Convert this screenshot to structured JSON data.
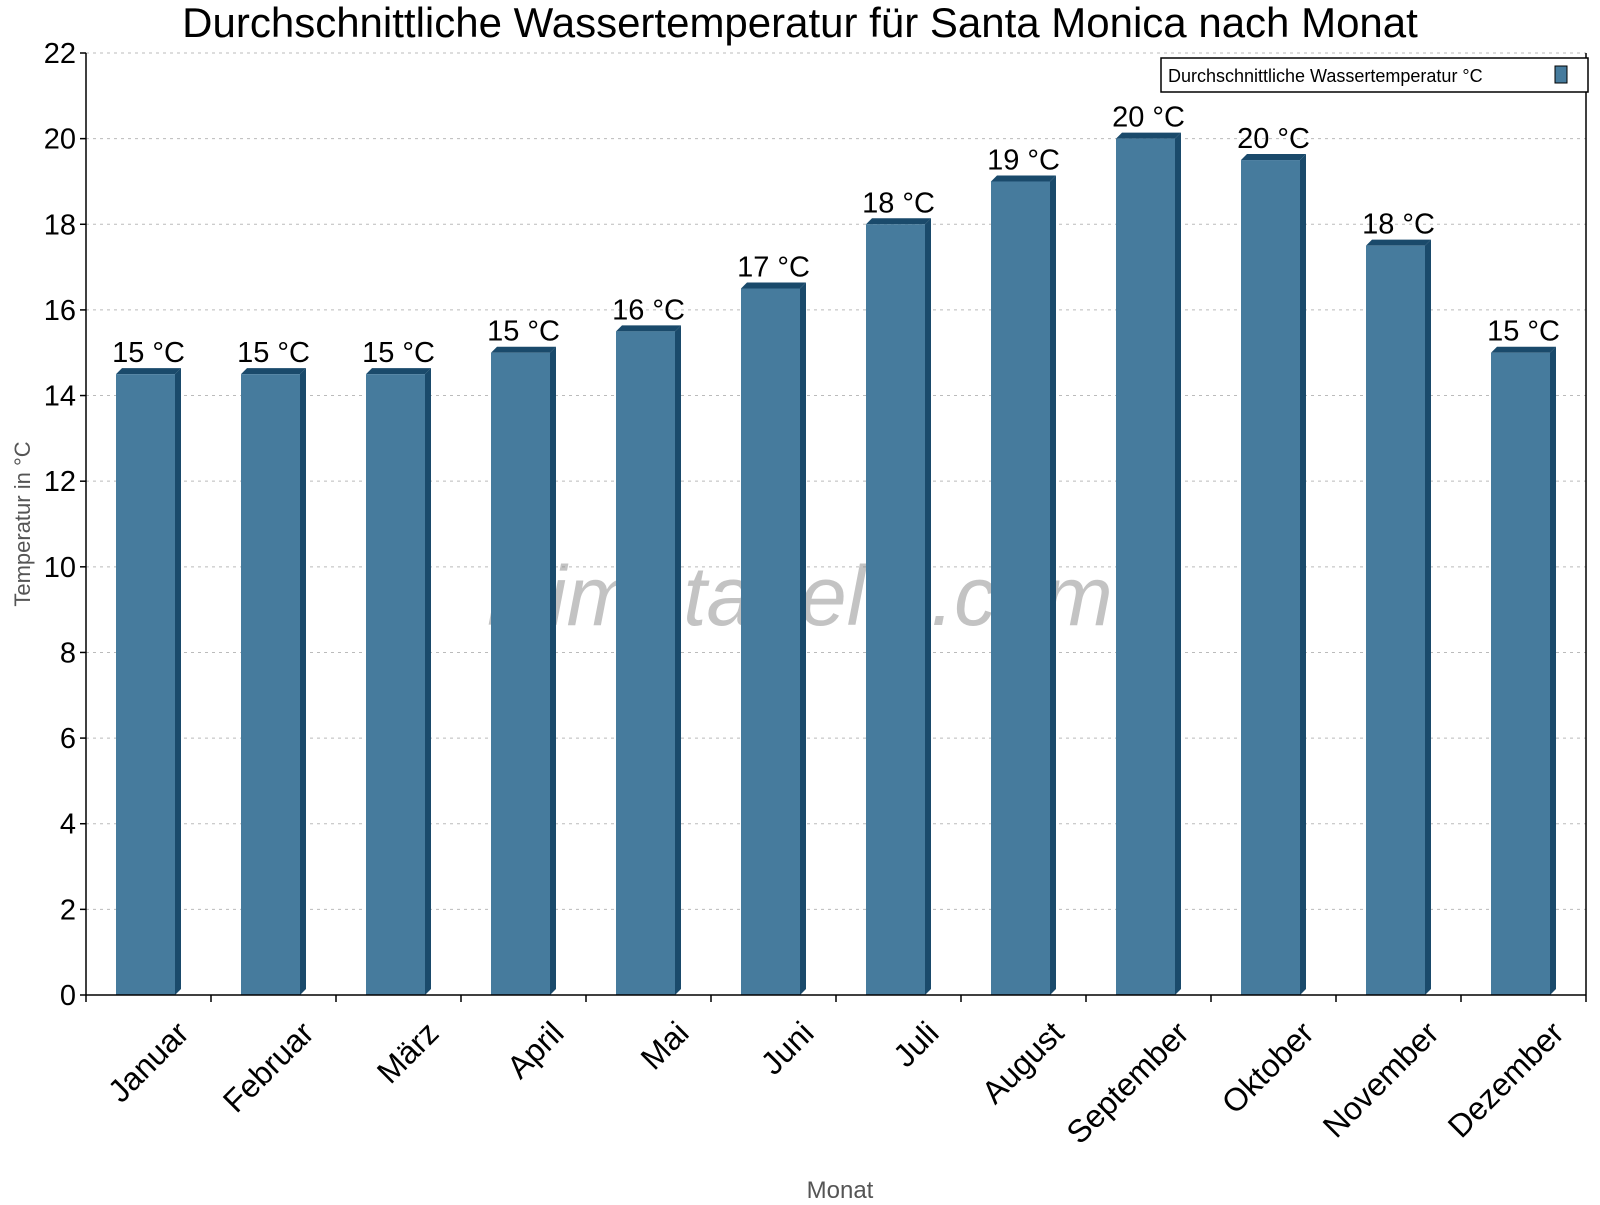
{
  "chart_data": {
    "type": "bar",
    "title": "Durchschnittliche Wassertemperatur für Santa Monica nach Monat",
    "xlabel": "Monat",
    "ylabel": "Temperatur in °C",
    "ylim": [
      0,
      22
    ],
    "yticks": [
      0,
      2,
      4,
      6,
      8,
      10,
      12,
      14,
      16,
      18,
      20,
      22
    ],
    "grid": true,
    "legend_position": "top-right",
    "categories": [
      "Januar",
      "Februar",
      "März",
      "April",
      "Mai",
      "Juni",
      "Juli",
      "August",
      "September",
      "Oktober",
      "November",
      "Dezember"
    ],
    "series": [
      {
        "name": "Durchschnittliche Wassertemperatur °C",
        "values": [
          14.5,
          14.5,
          14.5,
          15,
          15.5,
          16.5,
          18,
          19,
          20,
          19.5,
          17.5,
          15
        ],
        "labels": [
          "15 °C",
          "15 °C",
          "15 °C",
          "15 °C",
          "16 °C",
          "17 °C",
          "18 °C",
          "19 °C",
          "20 °C",
          "20 °C",
          "18 °C",
          "15 °C"
        ],
        "color": "#467b9d",
        "side_color": "#1a4a6b"
      }
    ],
    "watermark": "klimatabelle.com"
  }
}
